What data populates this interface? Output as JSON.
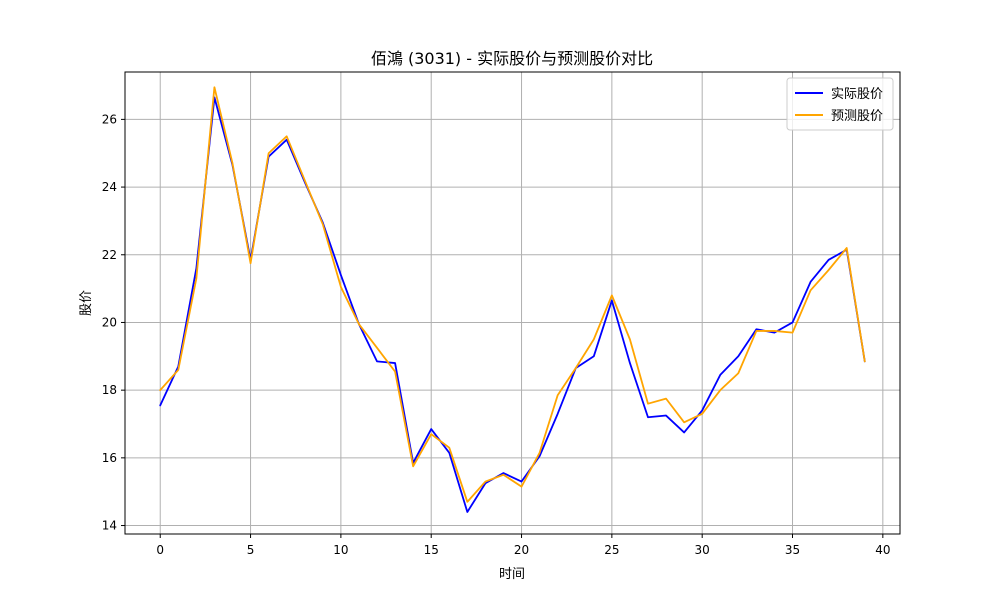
{
  "chart_data": {
    "type": "line",
    "title": "佰鴻 (3031) - 实际股价与预测股价对比",
    "xlabel": "时间",
    "ylabel": "股价",
    "xlim": [
      -1.95,
      40.95
    ],
    "ylim": [
      13.75,
      27.4
    ],
    "xticks": [
      0,
      5,
      10,
      15,
      20,
      25,
      30,
      35,
      40
    ],
    "yticks": [
      14,
      16,
      18,
      20,
      22,
      24,
      26
    ],
    "grid": true,
    "legend_position": "top-right",
    "x": [
      0,
      1,
      2,
      3,
      4,
      5,
      6,
      7,
      8,
      9,
      10,
      11,
      12,
      13,
      14,
      15,
      16,
      17,
      18,
      19,
      20,
      21,
      22,
      23,
      24,
      25,
      26,
      27,
      28,
      29,
      30,
      31,
      32,
      33,
      34,
      35,
      36,
      37,
      38,
      39
    ],
    "series": [
      {
        "name": "实际股价",
        "color": "#0000ff",
        "values": [
          17.55,
          18.7,
          21.6,
          26.65,
          24.65,
          21.85,
          24.9,
          25.4,
          24.15,
          22.95,
          21.4,
          19.95,
          18.85,
          18.8,
          15.85,
          16.85,
          16.15,
          14.4,
          15.25,
          15.55,
          15.3,
          16.05,
          17.3,
          18.65,
          19.0,
          20.65,
          18.8,
          17.2,
          17.25,
          16.75,
          17.4,
          18.45,
          19.0,
          19.8,
          19.7,
          20.0,
          21.2,
          21.85,
          22.15,
          18.85
        ]
      },
      {
        "name": "预测股价",
        "color": "#ffa500",
        "values": [
          18.0,
          18.6,
          21.3,
          26.95,
          24.7,
          21.75,
          25.0,
          25.5,
          24.2,
          22.9,
          21.05,
          19.95,
          19.25,
          18.55,
          15.75,
          16.7,
          16.3,
          14.7,
          15.3,
          15.5,
          15.15,
          16.15,
          17.85,
          18.65,
          19.5,
          20.8,
          19.5,
          17.6,
          17.75,
          17.05,
          17.3,
          18.0,
          18.5,
          19.75,
          19.75,
          19.7,
          20.95,
          21.55,
          22.2,
          18.85
        ]
      }
    ]
  }
}
